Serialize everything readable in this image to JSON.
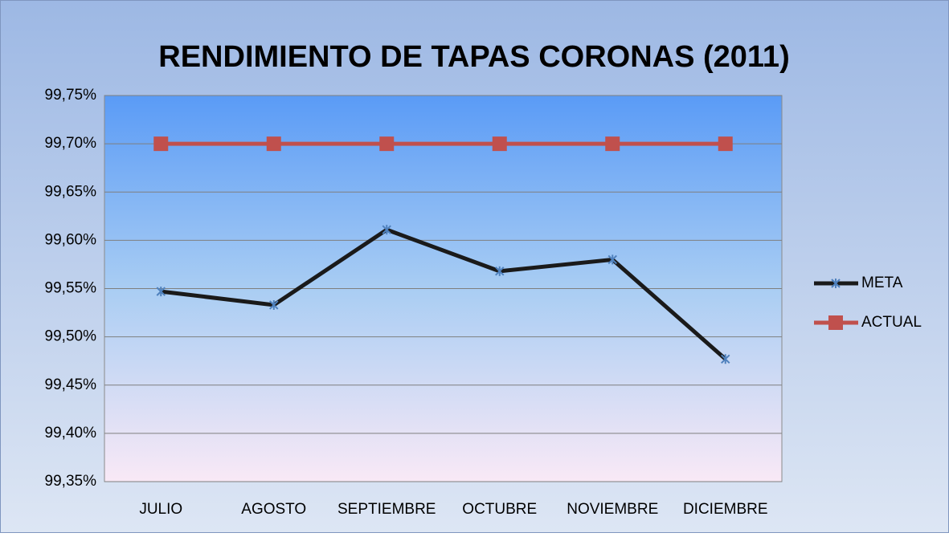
{
  "chart_data": {
    "type": "line",
    "title": "RENDIMIENTO DE TAPAS CORONAS (2011)",
    "categories": [
      "JULIO",
      "AGOSTO",
      "SEPTIEMBRE",
      "OCTUBRE",
      "NOVIEMBRE",
      "DICIEMBRE"
    ],
    "series": [
      {
        "name": "META",
        "color": "#1a1a1a",
        "marker": "star",
        "values": [
          99.547,
          99.533,
          99.611,
          99.568,
          99.58,
          99.477
        ]
      },
      {
        "name": "ACTUAL",
        "color": "#c0504d",
        "marker": "square",
        "values": [
          99.7,
          99.7,
          99.7,
          99.7,
          99.7,
          99.7
        ]
      }
    ],
    "ylim": [
      99.35,
      99.75
    ],
    "yticks": [
      {
        "value": 99.35,
        "label": "99,35%"
      },
      {
        "value": 99.4,
        "label": "99,40%"
      },
      {
        "value": 99.45,
        "label": "99,45%"
      },
      {
        "value": 99.5,
        "label": "99,50%"
      },
      {
        "value": 99.55,
        "label": "99,55%"
      },
      {
        "value": 99.6,
        "label": "99,60%"
      },
      {
        "value": 99.65,
        "label": "99,65%"
      },
      {
        "value": 99.7,
        "label": "99,70%"
      },
      {
        "value": 99.75,
        "label": "99,75%"
      }
    ],
    "grid": true,
    "legend": "right"
  }
}
